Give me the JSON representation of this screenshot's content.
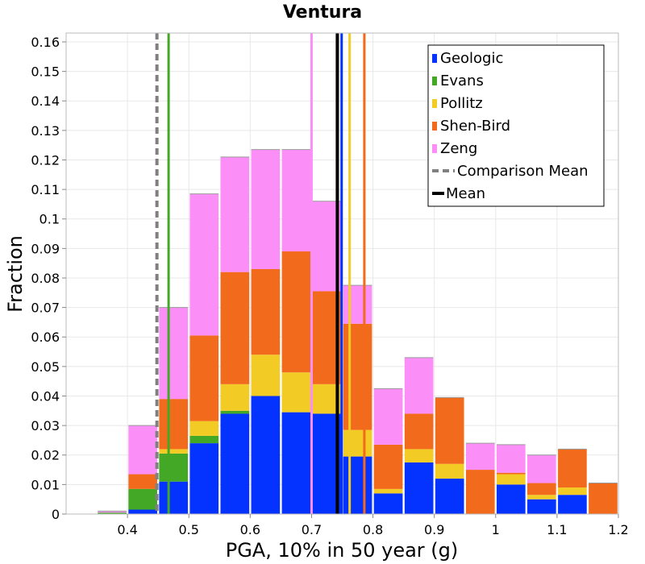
{
  "chart_data": {
    "type": "bar",
    "stacked": true,
    "title": "Ventura",
    "xlabel": "PGA, 10% in 50 year (g)",
    "ylabel": "Fraction",
    "xlim": [
      0.3,
      1.2
    ],
    "ylim": [
      0,
      0.163
    ],
    "xticks": [
      0.4,
      0.5,
      0.6,
      0.7,
      0.8,
      0.9,
      1,
      1.1,
      1.2
    ],
    "xtick_labels": [
      "0.4",
      "0.5",
      "0.6",
      "0.7",
      "0.8",
      "0.9",
      "1",
      "1.1",
      "1.2"
    ],
    "yticks": [
      0,
      0.01,
      0.02,
      0.03,
      0.04,
      0.05,
      0.06,
      0.07,
      0.08,
      0.09,
      0.1,
      0.11,
      0.12,
      0.13,
      0.14,
      0.15,
      0.16
    ],
    "ytick_labels": [
      "0",
      "0.01",
      "0.02",
      "0.03",
      "0.04",
      "0.05",
      "0.06",
      "0.07",
      "0.08",
      "0.09",
      "0.1",
      "0.11",
      "0.12",
      "0.13",
      "0.14",
      "0.15",
      "0.16"
    ],
    "grid": true,
    "legend_position": "top-right",
    "bin_width": 0.05,
    "bin_centers": [
      0.325,
      0.375,
      0.425,
      0.475,
      0.525,
      0.575,
      0.625,
      0.675,
      0.725,
      0.775,
      0.825,
      0.875,
      0.925,
      0.975,
      1.025,
      1.075,
      1.125,
      1.175
    ],
    "series": [
      {
        "name": "Geologic",
        "color": "#0433ff",
        "values": [
          0,
          0,
          0.0015,
          0.011,
          0.024,
          0.034,
          0.04,
          0.0345,
          0.034,
          0.0195,
          0.007,
          0.0175,
          0.012,
          0,
          0.01,
          0.005,
          0.0065,
          0
        ]
      },
      {
        "name": "Evans",
        "color": "#44a827",
        "values": [
          0,
          0.0005,
          0.007,
          0.0095,
          0.0025,
          0.001,
          0,
          0,
          0,
          0,
          0,
          0,
          0,
          0,
          0,
          0,
          0,
          0
        ]
      },
      {
        "name": "Pollitz",
        "color": "#f2cb24",
        "values": [
          0,
          0,
          0,
          0.0015,
          0.005,
          0.009,
          0.014,
          0.0135,
          0.01,
          0.009,
          0.0015,
          0.0045,
          0.005,
          0,
          0.0035,
          0.0015,
          0.0025,
          0
        ]
      },
      {
        "name": "Shen-Bird",
        "color": "#f26a1b",
        "values": [
          0,
          0,
          0.005,
          0.017,
          0.029,
          0.038,
          0.029,
          0.041,
          0.0315,
          0.036,
          0.015,
          0.012,
          0.0225,
          0.015,
          0.0005,
          0.004,
          0.013,
          0.0105
        ]
      },
      {
        "name": "Zeng",
        "color": "#fb8ff7",
        "values": [
          0,
          0.0005,
          0.0165,
          0.031,
          0.048,
          0.039,
          0.0405,
          0.0345,
          0.0305,
          0.013,
          0.019,
          0.019,
          0,
          0.009,
          0.0095,
          0.0095,
          0,
          0
        ]
      }
    ],
    "vertical_lines": [
      {
        "name": "Comparison Mean",
        "x": 0.448,
        "style": "dashed",
        "color": "#808080"
      },
      {
        "name": "Mean",
        "x": 0.742,
        "style": "solid",
        "color": "#000000"
      },
      {
        "name": "Evans",
        "x": 0.467,
        "style": "solid",
        "color": "#44a827"
      },
      {
        "name": "Zeng",
        "x": 0.7,
        "style": "solid",
        "color": "#fb8ff7"
      },
      {
        "name": "Geologic",
        "x": 0.749,
        "style": "solid",
        "color": "#0433ff"
      },
      {
        "name": "Pollitz",
        "x": 0.762,
        "style": "solid",
        "color": "#f2cb24"
      },
      {
        "name": "Shen-Bird",
        "x": 0.786,
        "style": "solid",
        "color": "#f26a1b"
      }
    ],
    "legend": [
      {
        "label": "Geologic",
        "color": "#0433ff",
        "marker": "bar"
      },
      {
        "label": "Evans",
        "color": "#44a827",
        "marker": "bar"
      },
      {
        "label": "Pollitz",
        "color": "#f2cb24",
        "marker": "bar"
      },
      {
        "label": "Shen-Bird",
        "color": "#f26a1b",
        "marker": "bar"
      },
      {
        "label": "Zeng",
        "color": "#fb8ff7",
        "marker": "bar"
      },
      {
        "label": "Comparison Mean",
        "color": "#808080",
        "marker": "dashed-line"
      },
      {
        "label": "Mean",
        "color": "#000000",
        "marker": "line"
      }
    ]
  }
}
